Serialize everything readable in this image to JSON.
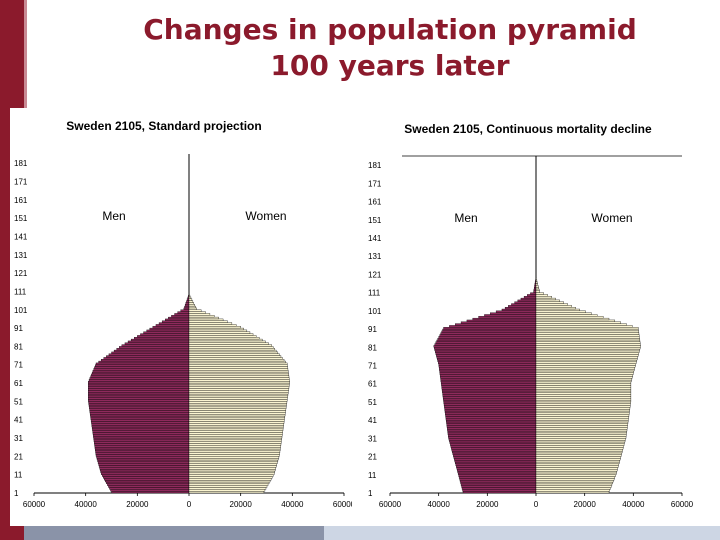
{
  "slide": {
    "title_line1": "Changes in population pyramid",
    "title_line2": "100 years later",
    "accent_color": "#8b1a2c"
  },
  "chart_data": [
    {
      "type": "bar",
      "orientation": "horizontal-pyramid",
      "title": "Sweden 2105, Standard projection",
      "left_label": "Men",
      "right_label": "Women",
      "age_ticks": [
        "181",
        "171",
        "161",
        "151",
        "141",
        "131",
        "121",
        "111",
        "101",
        "91",
        "81",
        "71",
        "61",
        "51",
        "41",
        "31",
        "21",
        "11",
        "1"
      ],
      "x_ticks": [
        "60000",
        "40000",
        "20000",
        "0",
        "20000",
        "40000",
        "60000"
      ],
      "xlim": [
        -60000,
        60000
      ],
      "age_range": [
        1,
        186
      ],
      "age_bands": [
        1,
        11,
        21,
        31,
        41,
        51,
        61,
        71,
        81,
        91,
        101
      ],
      "men": [
        30000,
        34000,
        36000,
        37000,
        38000,
        39000,
        39000,
        36000,
        26000,
        14000,
        2000
      ],
      "women": [
        29000,
        33000,
        35000,
        36000,
        37000,
        38000,
        39000,
        38000,
        32000,
        20000,
        3000
      ]
    },
    {
      "type": "bar",
      "orientation": "horizontal-pyramid",
      "title": "Sweden 2105, Continuous mortality decline",
      "left_label": "Men",
      "right_label": "Women",
      "age_ticks": [
        "181",
        "171",
        "161",
        "151",
        "141",
        "131",
        "121",
        "111",
        "101",
        "91",
        "81",
        "71",
        "61",
        "51",
        "41",
        "31",
        "21",
        "11",
        "1"
      ],
      "x_ticks": [
        "60000",
        "40000",
        "20000",
        "0",
        "20000",
        "40000",
        "60000"
      ],
      "xlim": [
        -60000,
        60000
      ],
      "age_range": [
        1,
        186
      ],
      "age_bands": [
        1,
        11,
        21,
        31,
        41,
        51,
        61,
        71,
        81,
        91,
        101,
        111
      ],
      "men": [
        30000,
        32000,
        34000,
        36000,
        37000,
        38000,
        39000,
        40000,
        42000,
        38000,
        14000,
        1000
      ],
      "women": [
        30000,
        33000,
        35000,
        37000,
        38000,
        39000,
        39000,
        41000,
        43000,
        42000,
        18000,
        1500
      ]
    }
  ]
}
